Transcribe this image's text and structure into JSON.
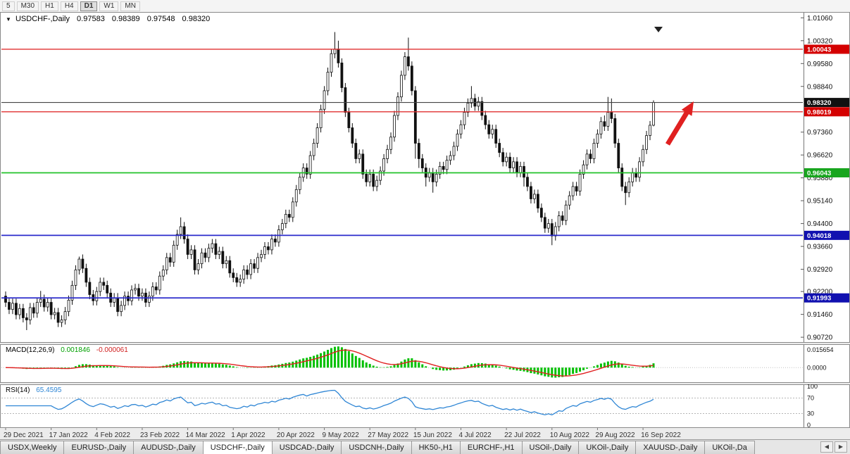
{
  "toolbar": {
    "timeframes": [
      "5",
      "M30",
      "H1",
      "H4",
      "D1",
      "W1",
      "MN"
    ],
    "active_timeframe": "D1"
  },
  "icons": {
    "collapse": "▼",
    "scroll_left": "◀",
    "scroll_right": "▶",
    "shift_marker": "▼"
  },
  "colors": {
    "bull": "#ffffff",
    "bear": "#111111",
    "outline": "#111111",
    "macd_hist": "#00c000",
    "macd_signal": "#e02020",
    "rsi_line": "#2f86d5",
    "arrow": "#e02020",
    "axis_text": "#111111"
  },
  "chart": {
    "symbol_label": "USDCHF-,Daily",
    "ohlc": {
      "open": "0.97583",
      "high": "0.98389",
      "low": "0.97548",
      "close": "0.98320"
    }
  },
  "chart_data": {
    "type": "candlestick",
    "symbol": "USDCHF",
    "timeframe": "Daily",
    "ylim": [
      0.9054,
      1.0125
    ],
    "price_axis_ticks": [
      "1.01060",
      "1.00320",
      "0.99580",
      "0.98840",
      "0.97360",
      "0.96620",
      "0.95880",
      "0.95140",
      "0.94400",
      "0.93660",
      "0.92920",
      "0.92200",
      "0.91460",
      "0.90720"
    ],
    "x_labels": [
      "29 Dec 2021",
      "17 Jan 2022",
      "4 Feb 2022",
      "23 Feb 2022",
      "14 Mar 2022",
      "1 Apr 2022",
      "20 Apr 2022",
      "9 May 2022",
      "27 May 2022",
      "15 Jun 2022",
      "4 Jul 2022",
      "22 Jul 2022",
      "10 Aug 2022",
      "29 Aug 2022",
      "16 Sep 2022"
    ],
    "x_label_indices": [
      0,
      13,
      26,
      39,
      52,
      65,
      78,
      91,
      104,
      117,
      130,
      143,
      156,
      169,
      182
    ],
    "hlines": [
      {
        "value": 1.00043,
        "label": "1.00043",
        "color": "#e03030",
        "tag_bg": "#d40000",
        "width": 1.4
      },
      {
        "value": 0.9832,
        "label": "0.98320",
        "color": "#444444",
        "tag_bg": "#111111",
        "width": 1.1
      },
      {
        "value": 0.98019,
        "label": "0.98019",
        "color": "#e03030",
        "tag_bg": "#d40000",
        "width": 1.4
      },
      {
        "value": 0.96043,
        "label": "0.96043",
        "color": "#22c32a",
        "tag_bg": "#18a51e",
        "width": 1.8
      },
      {
        "value": 0.94018,
        "label": "0.94018",
        "color": "#2a2acc",
        "tag_bg": "#1111b0",
        "width": 1.8
      },
      {
        "value": 0.91993,
        "label": "0.91993",
        "color": "#2a2acc",
        "tag_bg": "#1111b0",
        "width": 1.8
      }
    ],
    "indicators": {
      "macd": {
        "label": "MACD(12,26,9)",
        "value_main": "0.001846",
        "value_signal": "-0.000061",
        "periods": [
          12,
          26,
          9
        ],
        "ticks": [
          "0.015654",
          "0.0000"
        ]
      },
      "rsi": {
        "label": "RSI(14)",
        "value": "65.4595",
        "period": 14,
        "levels": [
          70,
          30
        ],
        "ticks": [
          100,
          70,
          30,
          0
        ]
      }
    },
    "candles": [
      [
        0.9205,
        0.922,
        0.917,
        0.9185
      ],
      [
        0.9185,
        0.92,
        0.9147,
        0.9162
      ],
      [
        0.9162,
        0.9197,
        0.9147,
        0.9182
      ],
      [
        0.9182,
        0.9197,
        0.913,
        0.9145
      ],
      [
        0.9145,
        0.918,
        0.913,
        0.9165
      ],
      [
        0.9165,
        0.918,
        0.912,
        0.9135
      ],
      [
        0.9135,
        0.915,
        0.9095,
        0.9128
      ],
      [
        0.9128,
        0.9183,
        0.9113,
        0.9168
      ],
      [
        0.9168,
        0.9183,
        0.9135,
        0.915
      ],
      [
        0.915,
        0.92,
        0.9135,
        0.9185
      ],
      [
        0.9185,
        0.9222,
        0.917,
        0.9195
      ],
      [
        0.9195,
        0.921,
        0.9155,
        0.917
      ],
      [
        0.917,
        0.92,
        0.9155,
        0.9185
      ],
      [
        0.9185,
        0.92,
        0.913,
        0.9145
      ],
      [
        0.9145,
        0.9167,
        0.913,
        0.9152
      ],
      [
        0.9152,
        0.9167,
        0.9105,
        0.912
      ],
      [
        0.912,
        0.9143,
        0.9105,
        0.9128
      ],
      [
        0.9128,
        0.917,
        0.9113,
        0.9155
      ],
      [
        0.9155,
        0.9207,
        0.914,
        0.9192
      ],
      [
        0.9192,
        0.9255,
        0.9177,
        0.924
      ],
      [
        0.924,
        0.9305,
        0.9225,
        0.929
      ],
      [
        0.929,
        0.9333,
        0.9275,
        0.9325
      ],
      [
        0.9325,
        0.934,
        0.928,
        0.9295
      ],
      [
        0.9295,
        0.931,
        0.9235,
        0.925
      ],
      [
        0.925,
        0.9265,
        0.9195,
        0.921
      ],
      [
        0.921,
        0.9225,
        0.9175,
        0.919
      ],
      [
        0.919,
        0.9235,
        0.9175,
        0.922
      ],
      [
        0.922,
        0.9265,
        0.9205,
        0.925
      ],
      [
        0.925,
        0.9265,
        0.9225,
        0.924
      ],
      [
        0.924,
        0.9255,
        0.92,
        0.9215
      ],
      [
        0.9215,
        0.923,
        0.917,
        0.9185
      ],
      [
        0.9185,
        0.9215,
        0.917,
        0.92
      ],
      [
        0.92,
        0.9215,
        0.914,
        0.9155
      ],
      [
        0.9155,
        0.919,
        0.914,
        0.9175
      ],
      [
        0.9175,
        0.922,
        0.916,
        0.9205
      ],
      [
        0.9205,
        0.922,
        0.9175,
        0.919
      ],
      [
        0.919,
        0.924,
        0.9175,
        0.9225
      ],
      [
        0.9225,
        0.9245,
        0.921,
        0.923
      ],
      [
        0.923,
        0.9245,
        0.919,
        0.9205
      ],
      [
        0.9205,
        0.923,
        0.919,
        0.9215
      ],
      [
        0.9215,
        0.923,
        0.917,
        0.9185
      ],
      [
        0.9185,
        0.922,
        0.917,
        0.9205
      ],
      [
        0.9205,
        0.925,
        0.919,
        0.9235
      ],
      [
        0.9235,
        0.925,
        0.921,
        0.9225
      ],
      [
        0.9225,
        0.9285,
        0.921,
        0.927
      ],
      [
        0.927,
        0.9305,
        0.9255,
        0.929
      ],
      [
        0.929,
        0.9345,
        0.9275,
        0.933
      ],
      [
        0.933,
        0.9345,
        0.93,
        0.9315
      ],
      [
        0.9315,
        0.9385,
        0.93,
        0.937
      ],
      [
        0.937,
        0.942,
        0.9355,
        0.9405
      ],
      [
        0.9405,
        0.946,
        0.939,
        0.943
      ],
      [
        0.943,
        0.9445,
        0.9375,
        0.939
      ],
      [
        0.939,
        0.9405,
        0.9325,
        0.934
      ],
      [
        0.934,
        0.937,
        0.9325,
        0.9355
      ],
      [
        0.9355,
        0.937,
        0.9275,
        0.929
      ],
      [
        0.929,
        0.9325,
        0.9275,
        0.931
      ],
      [
        0.931,
        0.936,
        0.9295,
        0.9345
      ],
      [
        0.9345,
        0.936,
        0.9315,
        0.933
      ],
      [
        0.933,
        0.9375,
        0.9315,
        0.936
      ],
      [
        0.936,
        0.939,
        0.9345,
        0.9375
      ],
      [
        0.9375,
        0.939,
        0.9325,
        0.934
      ],
      [
        0.934,
        0.9365,
        0.9325,
        0.935
      ],
      [
        0.935,
        0.9365,
        0.9295,
        0.931
      ],
      [
        0.931,
        0.9335,
        0.9295,
        0.932
      ],
      [
        0.932,
        0.9335,
        0.9265,
        0.928
      ],
      [
        0.928,
        0.9295,
        0.925,
        0.9265
      ],
      [
        0.9265,
        0.928,
        0.9235,
        0.925
      ],
      [
        0.925,
        0.9275,
        0.9235,
        0.926
      ],
      [
        0.926,
        0.9305,
        0.9245,
        0.929
      ],
      [
        0.929,
        0.9305,
        0.926,
        0.9275
      ],
      [
        0.9275,
        0.9325,
        0.926,
        0.931
      ],
      [
        0.931,
        0.9325,
        0.928,
        0.9295
      ],
      [
        0.9295,
        0.9345,
        0.928,
        0.933
      ],
      [
        0.933,
        0.9355,
        0.9315,
        0.934
      ],
      [
        0.934,
        0.938,
        0.9325,
        0.9365
      ],
      [
        0.9365,
        0.938,
        0.934,
        0.9355
      ],
      [
        0.9355,
        0.9405,
        0.934,
        0.939
      ],
      [
        0.939,
        0.9405,
        0.9365,
        0.938
      ],
      [
        0.938,
        0.9435,
        0.9365,
        0.942
      ],
      [
        0.942,
        0.9455,
        0.9405,
        0.944
      ],
      [
        0.944,
        0.9485,
        0.9425,
        0.947
      ],
      [
        0.947,
        0.9485,
        0.9445,
        0.946
      ],
      [
        0.946,
        0.9525,
        0.9445,
        0.951
      ],
      [
        0.951,
        0.9565,
        0.9495,
        0.955
      ],
      [
        0.955,
        0.9605,
        0.9535,
        0.959
      ],
      [
        0.959,
        0.9635,
        0.9575,
        0.962
      ],
      [
        0.962,
        0.9635,
        0.9585,
        0.96
      ],
      [
        0.96,
        0.9675,
        0.9585,
        0.966
      ],
      [
        0.966,
        0.9715,
        0.9645,
        0.97
      ],
      [
        0.97,
        0.9765,
        0.9685,
        0.975
      ],
      [
        0.975,
        0.9825,
        0.9735,
        0.981
      ],
      [
        0.981,
        0.9885,
        0.9795,
        0.987
      ],
      [
        0.987,
        0.9945,
        0.9855,
        0.993
      ],
      [
        0.993,
        1.0005,
        0.9915,
        0.999
      ],
      [
        0.999,
        1.006,
        0.9975,
        1.0005
      ],
      [
        1.0005,
        1.0032,
        0.9945,
        0.996
      ],
      [
        0.996,
        0.9975,
        0.9865,
        0.988
      ],
      [
        0.988,
        0.9895,
        0.9785,
        0.98
      ],
      [
        0.98,
        0.9815,
        0.9735,
        0.975
      ],
      [
        0.975,
        0.9765,
        0.9685,
        0.97
      ],
      [
        0.97,
        0.9715,
        0.9635,
        0.965
      ],
      [
        0.965,
        0.968,
        0.9635,
        0.9665
      ],
      [
        0.9665,
        0.968,
        0.9585,
        0.96
      ],
      [
        0.96,
        0.9615,
        0.956,
        0.9575
      ],
      [
        0.9575,
        0.9615,
        0.956,
        0.96
      ],
      [
        0.96,
        0.9615,
        0.9545,
        0.956
      ],
      [
        0.956,
        0.9595,
        0.9545,
        0.958
      ],
      [
        0.958,
        0.9625,
        0.9565,
        0.961
      ],
      [
        0.961,
        0.9665,
        0.9595,
        0.965
      ],
      [
        0.965,
        0.9695,
        0.9635,
        0.968
      ],
      [
        0.968,
        0.9735,
        0.9665,
        0.972
      ],
      [
        0.972,
        0.9805,
        0.9705,
        0.979
      ],
      [
        0.979,
        0.9865,
        0.9775,
        0.985
      ],
      [
        0.985,
        0.9935,
        0.9835,
        0.992
      ],
      [
        0.992,
        0.9995,
        0.9905,
        0.998
      ],
      [
        0.998,
        1.0042,
        0.9935,
        0.995
      ],
      [
        0.995,
        0.9965,
        0.9855,
        0.987
      ],
      [
        0.987,
        0.9885,
        0.965,
        0.97
      ],
      [
        0.97,
        0.9715,
        0.962,
        0.965
      ],
      [
        0.965,
        0.9665,
        0.9605,
        0.962
      ],
      [
        0.962,
        0.9635,
        0.956,
        0.959
      ],
      [
        0.959,
        0.962,
        0.9575,
        0.9605
      ],
      [
        0.9605,
        0.962,
        0.954,
        0.9575
      ],
      [
        0.9575,
        0.9615,
        0.956,
        0.96
      ],
      [
        0.96,
        0.964,
        0.9585,
        0.9625
      ],
      [
        0.9625,
        0.964,
        0.96,
        0.9615
      ],
      [
        0.9615,
        0.966,
        0.96,
        0.9645
      ],
      [
        0.9645,
        0.9675,
        0.963,
        0.966
      ],
      [
        0.966,
        0.9705,
        0.9645,
        0.969
      ],
      [
        0.969,
        0.9745,
        0.9675,
        0.973
      ],
      [
        0.973,
        0.9775,
        0.9715,
        0.976
      ],
      [
        0.976,
        0.9815,
        0.9745,
        0.98
      ],
      [
        0.98,
        0.9845,
        0.9785,
        0.983
      ],
      [
        0.983,
        0.9885,
        0.9815,
        0.9845
      ],
      [
        0.9845,
        0.986,
        0.9805,
        0.982
      ],
      [
        0.982,
        0.985,
        0.9805,
        0.9835
      ],
      [
        0.9835,
        0.985,
        0.9775,
        0.979
      ],
      [
        0.979,
        0.9805,
        0.9745,
        0.976
      ],
      [
        0.976,
        0.9775,
        0.9715,
        0.973
      ],
      [
        0.973,
        0.976,
        0.9715,
        0.9745
      ],
      [
        0.9745,
        0.976,
        0.9685,
        0.97
      ],
      [
        0.97,
        0.9715,
        0.9655,
        0.967
      ],
      [
        0.967,
        0.9685,
        0.9625,
        0.964
      ],
      [
        0.964,
        0.967,
        0.9625,
        0.9655
      ],
      [
        0.9655,
        0.967,
        0.9605,
        0.962
      ],
      [
        0.962,
        0.9655,
        0.9605,
        0.964
      ],
      [
        0.964,
        0.9655,
        0.959,
        0.9605
      ],
      [
        0.9605,
        0.964,
        0.959,
        0.9625
      ],
      [
        0.9625,
        0.964,
        0.956,
        0.959
      ],
      [
        0.959,
        0.9605,
        0.9545,
        0.956
      ],
      [
        0.956,
        0.9575,
        0.9505,
        0.952
      ],
      [
        0.952,
        0.955,
        0.9505,
        0.9535
      ],
      [
        0.9535,
        0.955,
        0.9475,
        0.949
      ],
      [
        0.949,
        0.9505,
        0.9445,
        0.946
      ],
      [
        0.946,
        0.9475,
        0.941,
        0.9425
      ],
      [
        0.9425,
        0.9455,
        0.941,
        0.944
      ],
      [
        0.944,
        0.9455,
        0.937,
        0.94
      ],
      [
        0.94,
        0.9445,
        0.9385,
        0.943
      ],
      [
        0.943,
        0.948,
        0.9415,
        0.9465
      ],
      [
        0.9465,
        0.948,
        0.9435,
        0.945
      ],
      [
        0.945,
        0.9515,
        0.9435,
        0.95
      ],
      [
        0.95,
        0.9545,
        0.9485,
        0.953
      ],
      [
        0.953,
        0.9575,
        0.9515,
        0.956
      ],
      [
        0.956,
        0.9575,
        0.953,
        0.9545
      ],
      [
        0.9545,
        0.9615,
        0.953,
        0.96
      ],
      [
        0.96,
        0.9645,
        0.9585,
        0.963
      ],
      [
        0.963,
        0.968,
        0.9615,
        0.9665
      ],
      [
        0.9665,
        0.968,
        0.9635,
        0.965
      ],
      [
        0.965,
        0.9715,
        0.9635,
        0.97
      ],
      [
        0.97,
        0.9745,
        0.9685,
        0.973
      ],
      [
        0.973,
        0.9785,
        0.9715,
        0.977
      ],
      [
        0.977,
        0.979,
        0.974,
        0.9755
      ],
      [
        0.9755,
        0.985,
        0.974,
        0.98
      ],
      [
        0.98,
        0.9845,
        0.9765,
        0.978
      ],
      [
        0.978,
        0.9795,
        0.9685,
        0.97
      ],
      [
        0.97,
        0.9715,
        0.9605,
        0.962
      ],
      [
        0.962,
        0.9635,
        0.9545,
        0.956
      ],
      [
        0.956,
        0.9575,
        0.95,
        0.954
      ],
      [
        0.954,
        0.959,
        0.9525,
        0.9575
      ],
      [
        0.9575,
        0.962,
        0.956,
        0.9605
      ],
      [
        0.9605,
        0.962,
        0.9575,
        0.959
      ],
      [
        0.959,
        0.9655,
        0.9575,
        0.964
      ],
      [
        0.964,
        0.9695,
        0.9625,
        0.968
      ],
      [
        0.968,
        0.974,
        0.9665,
        0.9725
      ],
      [
        0.9725,
        0.9772,
        0.971,
        0.97583
      ],
      [
        0.97583,
        0.98389,
        0.97548,
        0.9832
      ]
    ]
  },
  "tabs": {
    "items": [
      "USDX,Weekly",
      "EURUSD-,Daily",
      "AUDUSD-,Daily",
      "USDCHF-,Daily",
      "USDCAD-,Daily",
      "USDCNH-,Daily",
      "HK50-,H1",
      "EURCHF-,H1",
      "USOil-,Daily",
      "UKOil-,Daily",
      "XAUUSD-,Daily",
      "UKOil-,Da"
    ],
    "active_index": 3
  }
}
